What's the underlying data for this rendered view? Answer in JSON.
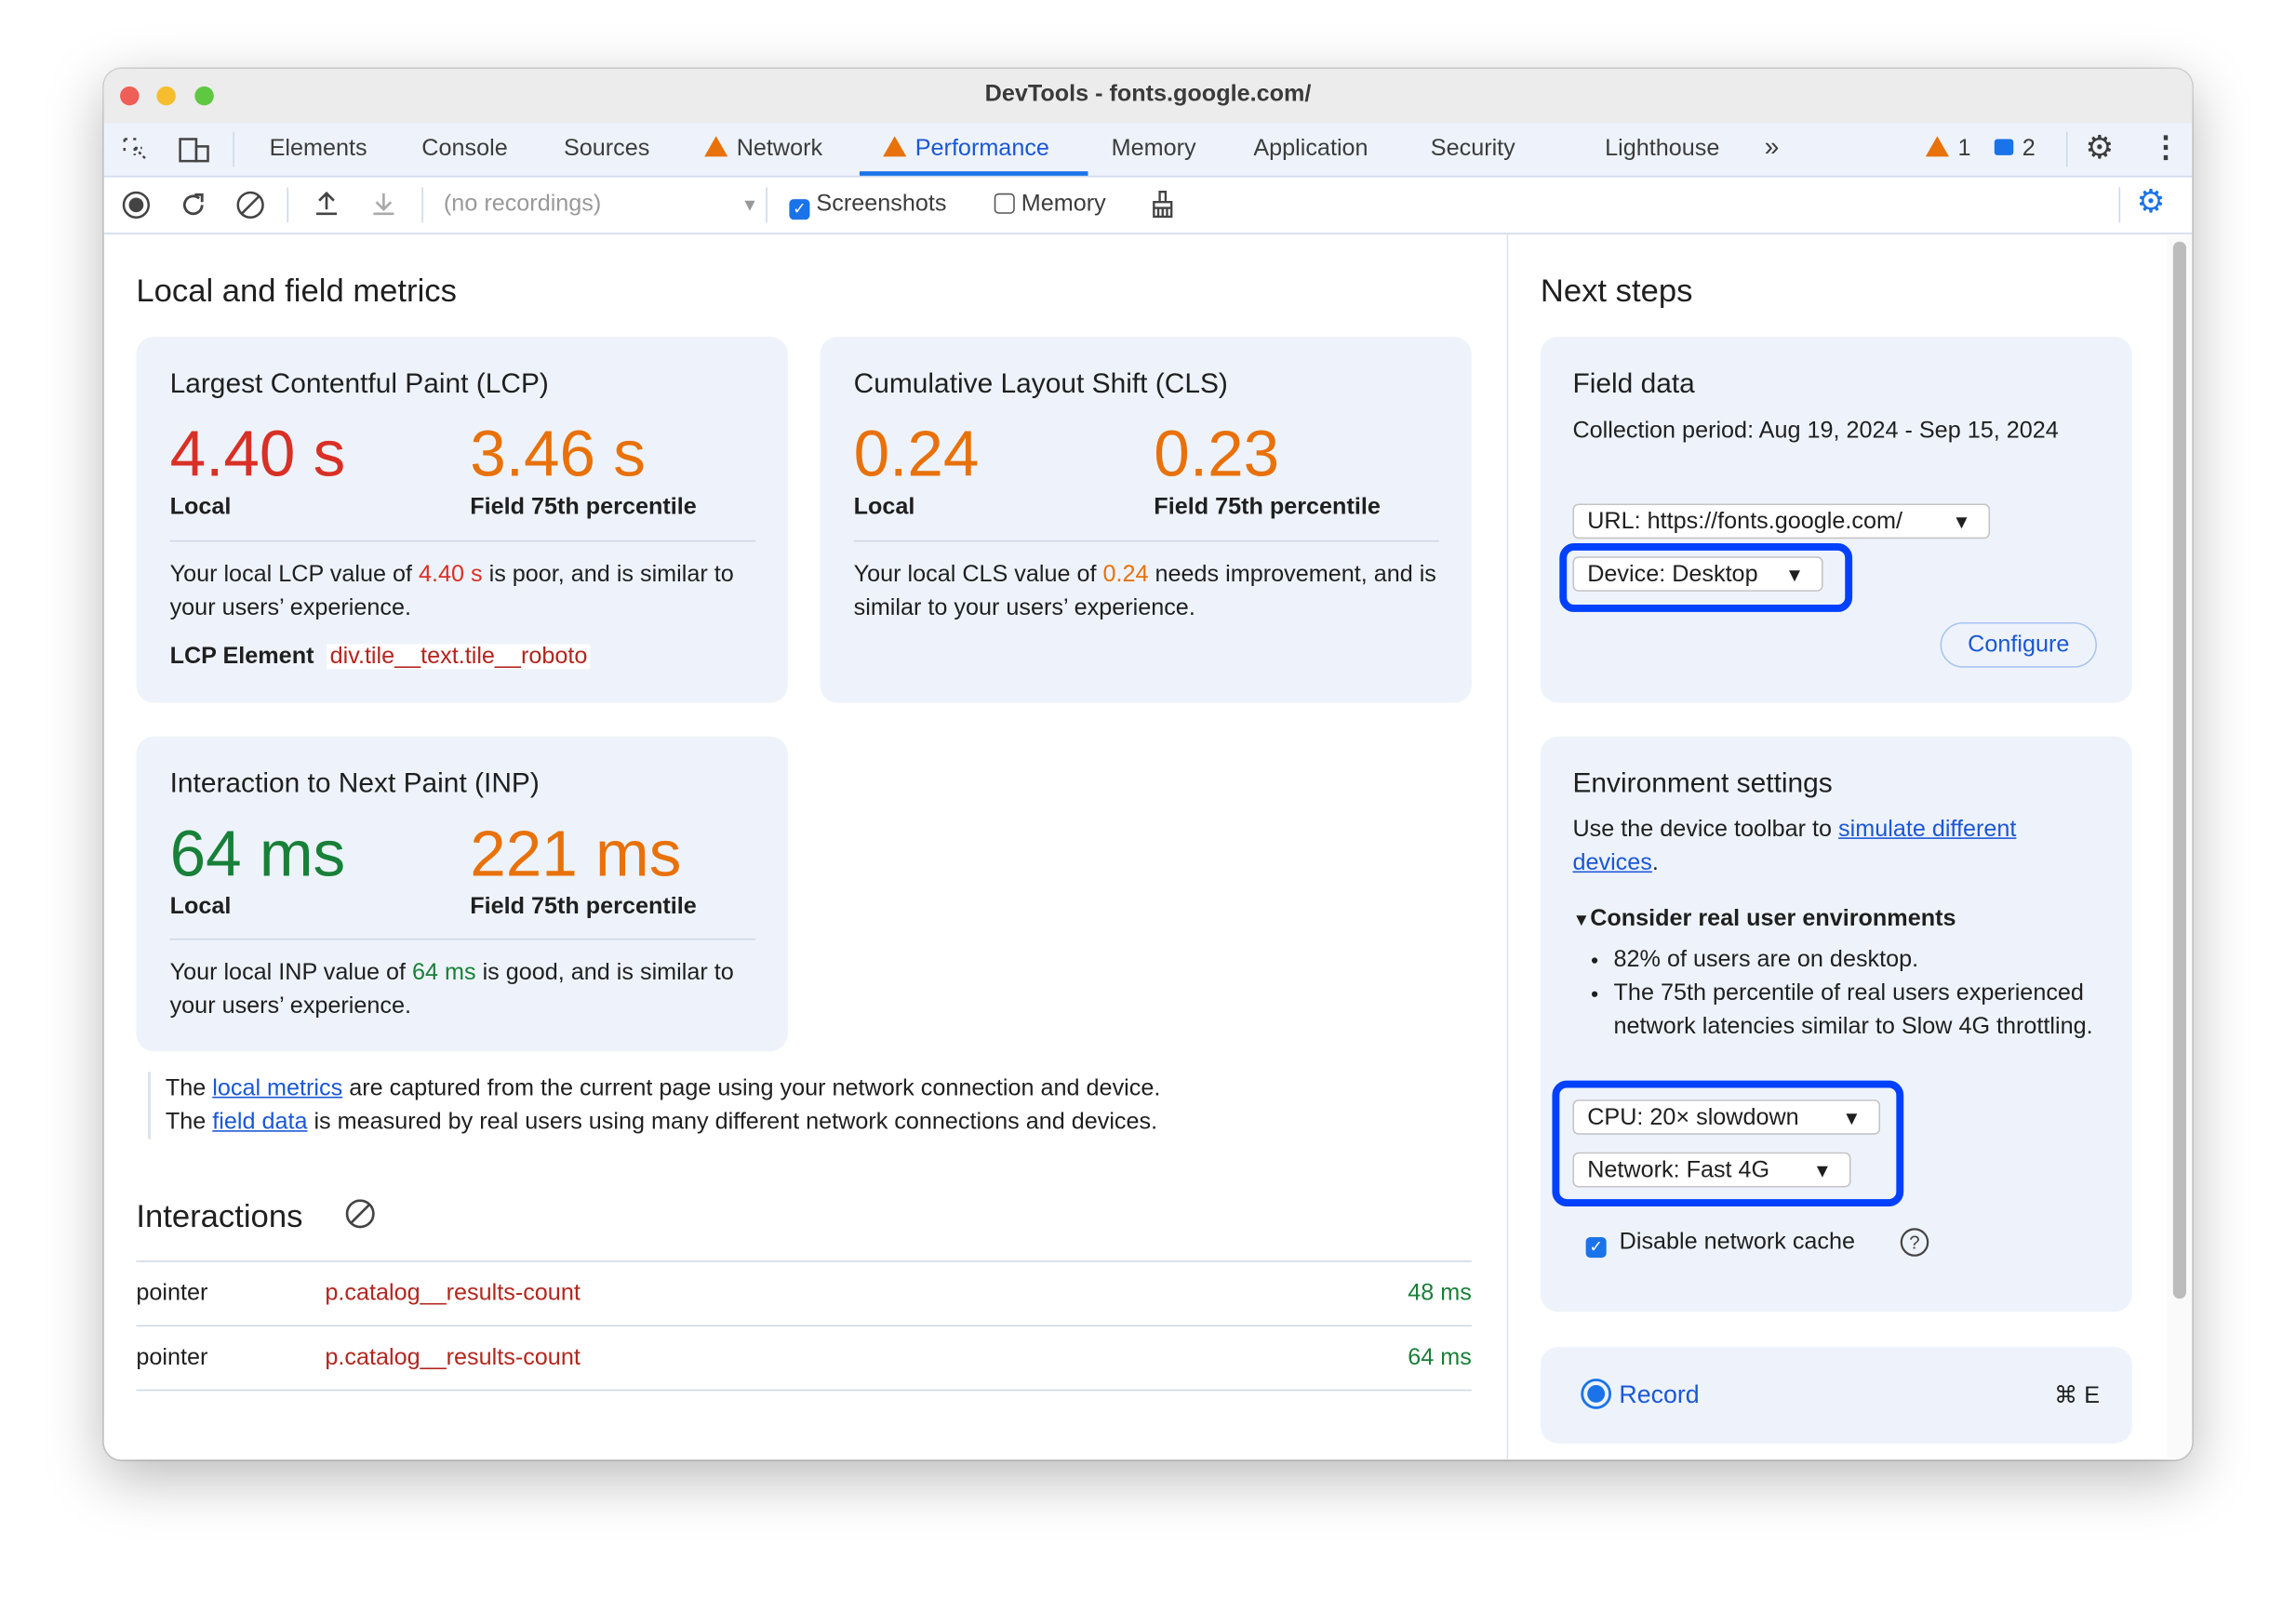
{
  "window": {
    "title": "DevTools - fonts.google.com/"
  },
  "tabs": [
    {
      "label": "Elements"
    },
    {
      "label": "Console"
    },
    {
      "label": "Sources"
    },
    {
      "label": "Network",
      "icon": "warning-icon"
    },
    {
      "label": "Performance",
      "icon": "warning-icon",
      "active": true
    },
    {
      "label": "Memory"
    },
    {
      "label": "Application"
    },
    {
      "label": "Security"
    },
    {
      "label": "Lighthouse"
    }
  ],
  "status": {
    "warnings": "1",
    "messages": "2"
  },
  "toolbar": {
    "recordings_placeholder": "(no recordings)",
    "screenshots_label": "Screenshots",
    "screenshots_checked": true,
    "memory_label": "Memory",
    "memory_checked": false
  },
  "left": {
    "heading": "Local and field metrics",
    "lcp": {
      "title": "Largest Contentful Paint (LCP)",
      "local": "4.40 s",
      "field": "3.46 s",
      "local_label": "Local",
      "field_label": "Field 75th percentile",
      "desc_pre": "Your local LCP value of ",
      "desc_val": "4.40 s",
      "desc_post": " is poor, and is similar to your users’ experience.",
      "element_label": "LCP Element",
      "element_value": "div.tile__text.tile__roboto"
    },
    "cls": {
      "title": "Cumulative Layout Shift (CLS)",
      "local": "0.24",
      "field": "0.23",
      "local_label": "Local",
      "field_label": "Field 75th percentile",
      "desc_pre": "Your local CLS value of ",
      "desc_val": "0.24",
      "desc_post": " needs improvement, and is similar to your users’ experience."
    },
    "inp": {
      "title": "Interaction to Next Paint (INP)",
      "local": "64 ms",
      "field": "221 ms",
      "local_label": "Local",
      "field_label": "Field 75th percentile",
      "desc_pre": "Your local INP value of ",
      "desc_val": "64 ms",
      "desc_post": " is good, and is similar to your users’ experience."
    },
    "note": {
      "l1_pre": "The ",
      "l1_link": "local metrics",
      "l1_post": " are captured from the current page using your network connection and device.",
      "l2_pre": "The ",
      "l2_link": "field data",
      "l2_post": " is measured by real users using many different network connections and devices."
    },
    "interactions": {
      "heading": "Interactions",
      "rows": [
        {
          "type": "pointer",
          "target": "p.catalog__results-count",
          "time": "48 ms"
        },
        {
          "type": "pointer",
          "target": "p.catalog__results-count",
          "time": "64 ms"
        }
      ]
    }
  },
  "right": {
    "heading": "Next steps",
    "field": {
      "title": "Field data",
      "period": "Collection period: Aug 19, 2024 - Sep 15, 2024",
      "url_select": "URL: https://fonts.google.com/",
      "device_select": "Device: Desktop",
      "configure": "Configure"
    },
    "env": {
      "title": "Environment settings",
      "desc_pre": "Use the device toolbar to ",
      "desc_link": "simulate different devices",
      "desc_post": ".",
      "details_label": "Consider real user environments",
      "bullets": [
        "82% of users are on desktop.",
        "The 75th percentile of real users experienced network latencies similar to Slow 4G throttling."
      ],
      "cpu_select": "CPU: 20× slowdown",
      "network_select": "Network: Fast 4G",
      "cache_label": "Disable network cache",
      "cache_checked": true
    },
    "record": {
      "label": "Record",
      "shortcut": "⌘ E"
    }
  },
  "colors": {
    "poor": "#d93025",
    "needs_improvement": "#e8710a",
    "good": "#188038",
    "accent": "#1a73e8",
    "highlight": "#0040ff"
  }
}
